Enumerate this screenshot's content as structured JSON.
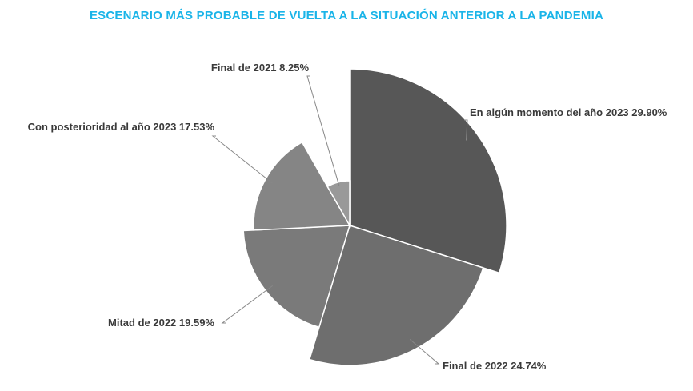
{
  "chart_data": {
    "type": "pie",
    "title": "ESCENARIO MÁS PROBABLE DE VUELTA A LA SITUACIÓN ANTERIOR A LA PANDEMIA",
    "title_color": "#1ab4e8",
    "categories": [
      "En algún momento del año 2023",
      "Final de 2022",
      "Mitad de 2022",
      "Con posterioridad al año 2023",
      "Final de 2021"
    ],
    "values": [
      29.9,
      24.74,
      19.59,
      17.53,
      8.25
    ],
    "labels": [
      "En algún momento del año 2023 29.90%",
      "Final de 2022 24.74%",
      "Mitad de 2022 19.59%",
      "Con posterioridad al año 2023 17.53%",
      "Final de 2021 8.25%"
    ],
    "colors": [
      "#575757",
      "#6e6e6e",
      "#7a7a7a",
      "#858585",
      "#999999"
    ],
    "variable_radius": true,
    "start_angle": "12 o'clock",
    "direction": "clockwise",
    "legend": "none"
  }
}
